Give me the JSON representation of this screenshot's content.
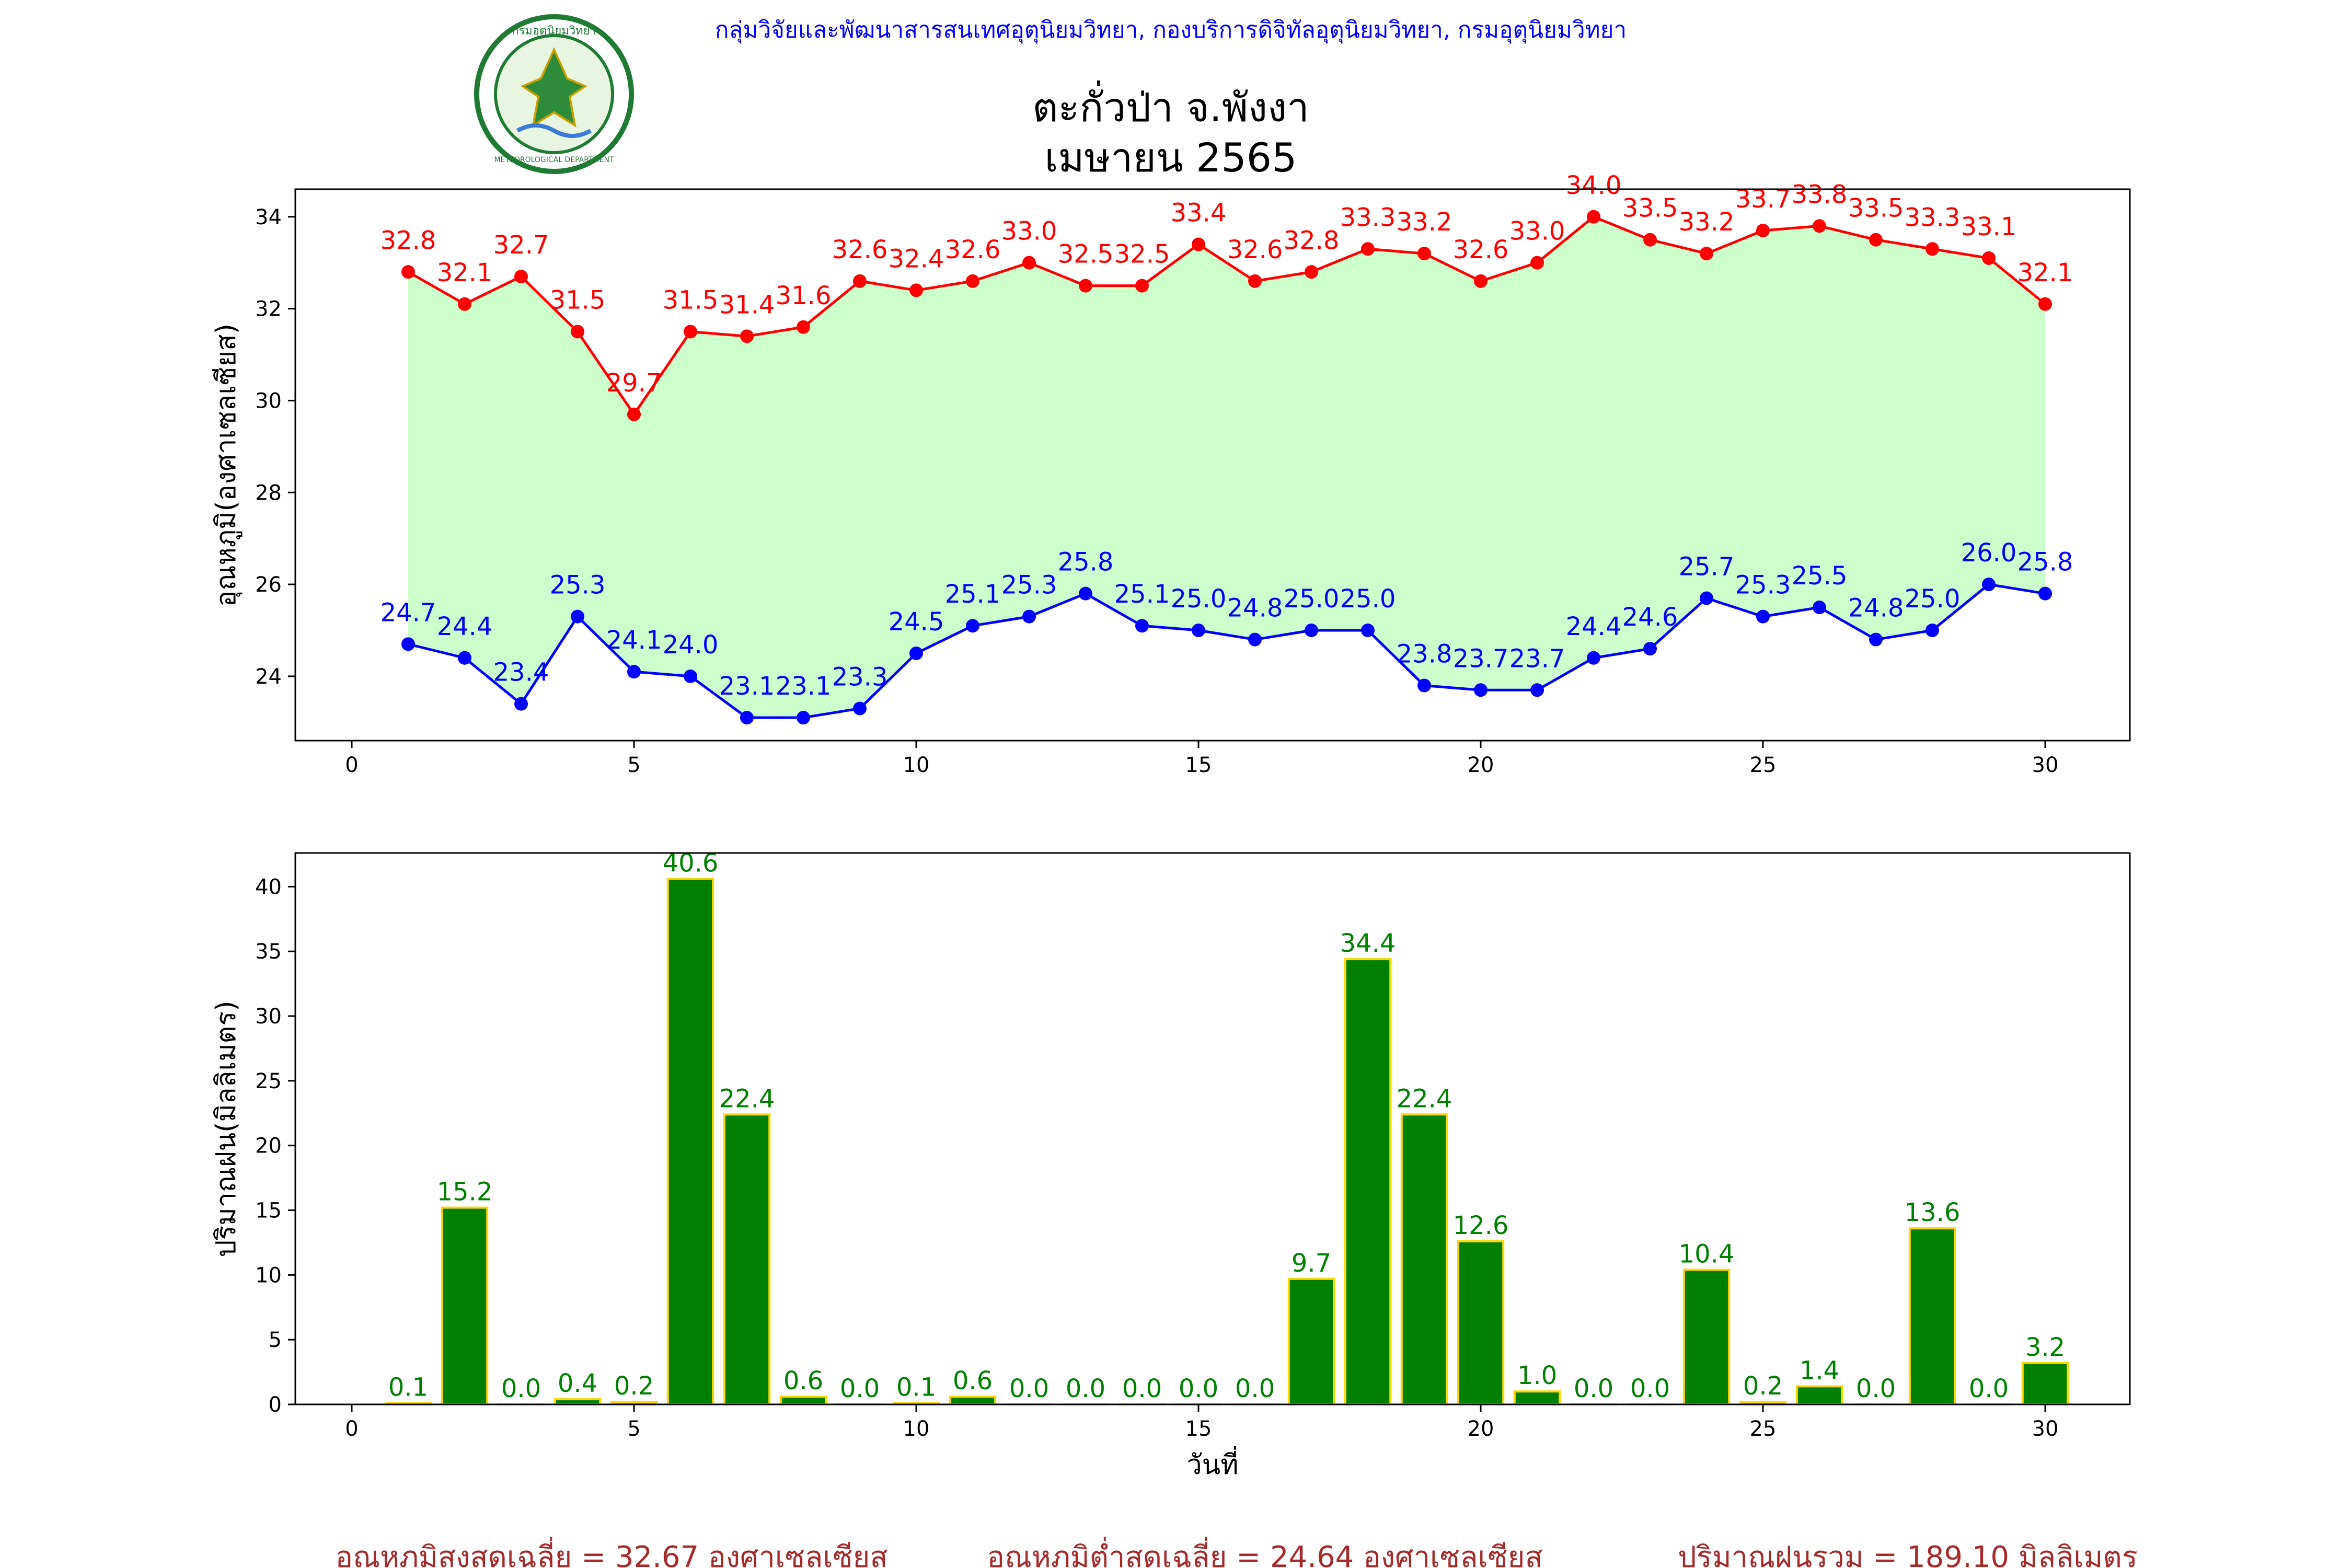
{
  "header": {
    "agency_line": "กลุ่มวิจัยและพัฒนาสารสนเทศอุตุนิยมวิทยา, กองบริการดิจิทัลอุตุนิยมวิทยา, กรมอุตุนิยมวิทยา",
    "title_line1": "ตะกั่วป่า จ.พังงา",
    "title_line2": "เมษายน 2565",
    "logo_text_top": "กรมอุตุนิยมวิทยา",
    "logo_text_bottom": "METEOROLOGICAL DEPARTMENT"
  },
  "colors": {
    "max_line": "#ff0000",
    "min_line": "#0000ff",
    "fill": "#ccffcc",
    "bar": "#008000",
    "bar_edge": "#ffd700",
    "bar_label": "#008000",
    "agency_text": "#0000ff",
    "footer_text": "#a52a2a"
  },
  "chart_data": [
    {
      "type": "line",
      "title": "ตะกั่วป่า จ.พังงา เมษายน 2565",
      "xlabel": "",
      "ylabel": "อุณหภูมิ(องศาเซลเซียส)",
      "xlim": [
        -1,
        31.5
      ],
      "ylim": [
        22.6,
        34.6
      ],
      "xticks": [
        0,
        5,
        10,
        15,
        20,
        25,
        30
      ],
      "yticks": [
        24,
        26,
        28,
        30,
        32,
        34
      ],
      "x": [
        1,
        2,
        3,
        4,
        5,
        6,
        7,
        8,
        9,
        10,
        11,
        12,
        13,
        14,
        15,
        16,
        17,
        18,
        19,
        20,
        21,
        22,
        23,
        24,
        25,
        26,
        27,
        28,
        29,
        30
      ],
      "series": [
        {
          "name": "max",
          "values": [
            32.8,
            32.1,
            32.7,
            31.5,
            29.7,
            31.5,
            31.4,
            31.6,
            32.6,
            32.4,
            32.6,
            33.0,
            32.5,
            32.5,
            33.4,
            32.6,
            32.8,
            33.3,
            33.2,
            32.6,
            33.0,
            34.0,
            33.5,
            33.2,
            33.7,
            33.8,
            33.5,
            33.3,
            33.1,
            32.1
          ],
          "labels": [
            "32.8",
            "32.1",
            "32.7",
            "31.5",
            "29.7",
            "31.5",
            "31.4",
            "31.6",
            "32.6",
            "32.4",
            "32.6",
            "33.0",
            "32.5",
            "32.5",
            "33.4",
            "32.6",
            "32.8",
            "33.3",
            "33.2",
            "32.6",
            "33.0",
            "34.0",
            "33.5",
            "33.2",
            "33.7",
            "33.8",
            "33.5",
            "33.3",
            "33.1",
            "32.1"
          ]
        },
        {
          "name": "min",
          "values": [
            24.7,
            24.4,
            23.4,
            25.3,
            24.1,
            24.0,
            23.1,
            23.1,
            23.3,
            24.5,
            25.1,
            25.3,
            25.8,
            25.1,
            25.0,
            24.8,
            25.0,
            25.0,
            23.8,
            23.7,
            23.7,
            24.4,
            24.6,
            25.7,
            25.3,
            25.5,
            24.8,
            25.0,
            26.0,
            25.8
          ],
          "labels": [
            "24.7",
            "24.4",
            "23.4",
            "25.3",
            "24.1",
            "24.0",
            "23.1",
            "23.1",
            "23.3",
            "24.5",
            "25.1",
            "25.3",
            "25.8",
            "25.1",
            "25.0",
            "24.8",
            "25.0",
            "25.0",
            "23.8",
            "23.7",
            "23.7",
            "24.4",
            "24.6",
            "25.7",
            "25.3",
            "25.5",
            "24.8",
            "25.0",
            "26.0",
            "25.8"
          ]
        }
      ]
    },
    {
      "type": "bar",
      "xlabel": "วันที่",
      "ylabel": "ปริมาณฝน(มิลลิเมตร)",
      "xlim": [
        -1,
        31.5
      ],
      "ylim": [
        0,
        42.6
      ],
      "xticks": [
        0,
        5,
        10,
        15,
        20,
        25,
        30
      ],
      "yticks": [
        0,
        5,
        10,
        15,
        20,
        25,
        30,
        35,
        40
      ],
      "categories": [
        1,
        2,
        3,
        4,
        5,
        6,
        7,
        8,
        9,
        10,
        11,
        12,
        13,
        14,
        15,
        16,
        17,
        18,
        19,
        20,
        21,
        22,
        23,
        24,
        25,
        26,
        27,
        28,
        29,
        30
      ],
      "values": [
        0.1,
        15.2,
        0.0,
        0.4,
        0.2,
        40.6,
        22.4,
        0.6,
        0.0,
        0.1,
        0.6,
        0.0,
        0.0,
        0.0,
        0.0,
        0.0,
        9.7,
        34.4,
        22.4,
        12.6,
        1.0,
        0.0,
        0.0,
        10.4,
        0.2,
        1.4,
        0.0,
        13.6,
        0.0,
        3.2
      ],
      "labels": [
        "0.1",
        "15.2",
        "0.0",
        "0.4",
        "0.2",
        "40.6",
        "22.4",
        "0.6",
        "0.0",
        "0.1",
        "0.6",
        "0.0",
        "0.0",
        "0.0",
        "0.0",
        "0.0",
        "9.7",
        "34.4",
        "22.4",
        "12.6",
        "1.0",
        "0.0",
        "0.0",
        "10.4",
        "0.2",
        "1.4",
        "0.0",
        "13.6",
        "0.0",
        "3.2"
      ]
    }
  ],
  "footer": {
    "avg_max": "อุณหภูมิสูงสุดเฉลี่ย = 32.67 องศาเซลเซียส",
    "avg_min": "อุณหภูมิต่ำสุดเฉลี่ย = 24.64 องศาเซลเซียส",
    "rain_total": "ปริมาณฝนรวม = 189.10 มิลลิเมตร"
  }
}
